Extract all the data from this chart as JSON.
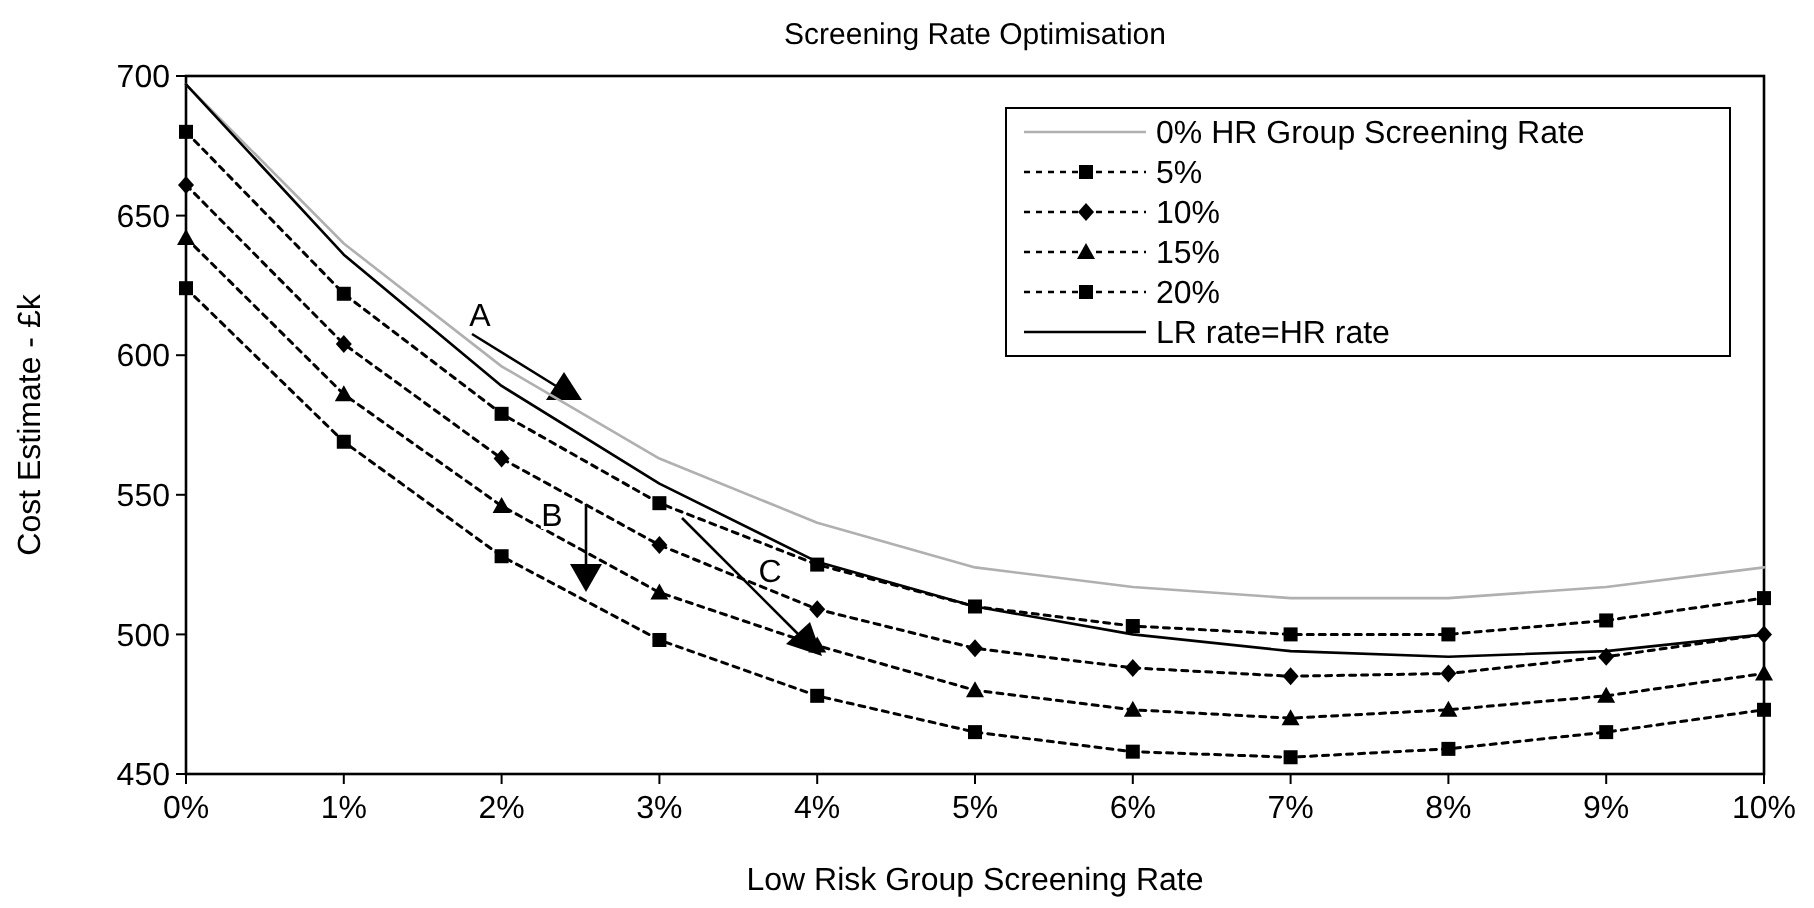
{
  "chart_data": {
    "type": "line",
    "title": "Screening Rate Optimisation",
    "xlabel": "Low Risk Group Screening Rate",
    "ylabel": "Cost Estimate - £k",
    "x": [
      0,
      1,
      2,
      3,
      4,
      5,
      6,
      7,
      8,
      9,
      10
    ],
    "xlim": [
      0,
      10
    ],
    "xticks": [
      {
        "value": 0,
        "label": "0%"
      },
      {
        "value": 1,
        "label": "1%"
      },
      {
        "value": 2,
        "label": "2%"
      },
      {
        "value": 3,
        "label": "3%"
      },
      {
        "value": 4,
        "label": "4%"
      },
      {
        "value": 5,
        "label": "5%"
      },
      {
        "value": 6,
        "label": "6%"
      },
      {
        "value": 7,
        "label": "7%"
      },
      {
        "value": 8,
        "label": "8%"
      },
      {
        "value": 9,
        "label": "9%"
      },
      {
        "value": 10,
        "label": "10%"
      }
    ],
    "ylim": [
      450,
      700
    ],
    "yticks": [
      450,
      500,
      550,
      600,
      650,
      700
    ],
    "grid": false,
    "legend": "top right",
    "series": [
      {
        "name": "0% HR Group Screening Rate",
        "color": "#b0b0b0",
        "marker": "none",
        "line_style": "solid",
        "values": [
          697,
          640,
          596,
          563,
          540,
          524,
          517,
          513,
          513,
          517,
          524
        ]
      },
      {
        "name": "5%",
        "color": "#000000",
        "marker": "square",
        "line_style": "dashed",
        "values": [
          680,
          622,
          579,
          547,
          525,
          510,
          503,
          500,
          500,
          505,
          513
        ]
      },
      {
        "name": "10%",
        "color": "#000000",
        "marker": "diamond",
        "line_style": "dashed",
        "values": [
          661,
          604,
          563,
          532,
          509,
          495,
          488,
          485,
          486,
          492,
          500
        ]
      },
      {
        "name": "15%",
        "color": "#000000",
        "marker": "triangle",
        "line_style": "dashed",
        "values": [
          642,
          586,
          546,
          515,
          496,
          480,
          473,
          470,
          473,
          478,
          486
        ]
      },
      {
        "name": "20%",
        "color": "#000000",
        "marker": "square",
        "line_style": "dashed",
        "values": [
          624,
          569,
          528,
          498,
          478,
          465,
          458,
          456,
          459,
          465,
          473
        ]
      },
      {
        "name": "LR rate=HR rate",
        "color": "#000000",
        "marker": "none",
        "line_style": "solid",
        "values": [
          697,
          636,
          589,
          554,
          526,
          510,
          500,
          494,
          492,
          494,
          500
        ]
      }
    ],
    "annotations": [
      "A",
      "B",
      "C"
    ]
  }
}
